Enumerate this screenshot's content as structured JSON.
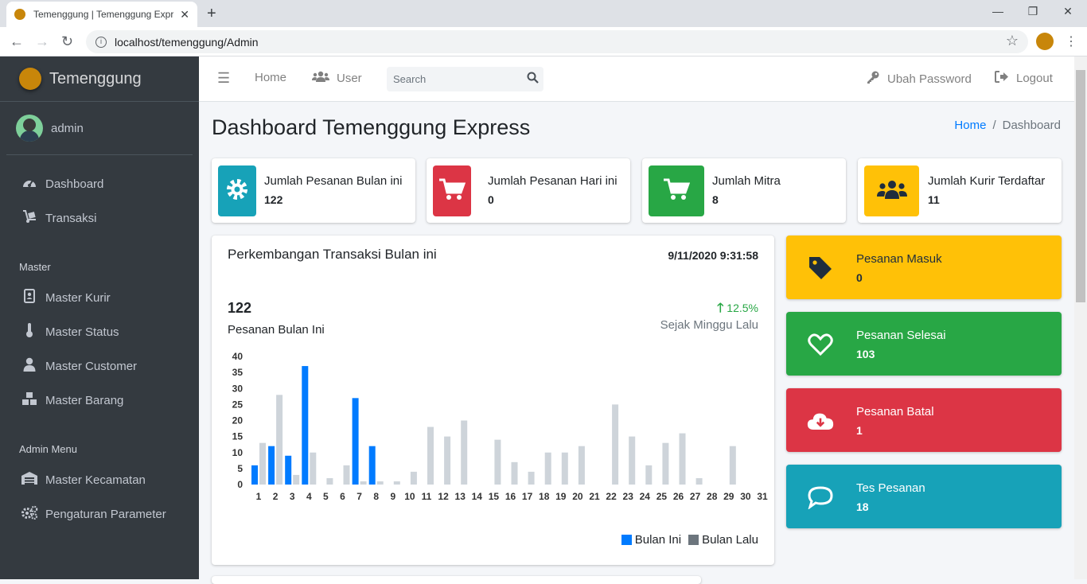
{
  "browser": {
    "tab_title": "Temenggung | Temenggung Express",
    "url": "localhost/temenggung/Admin"
  },
  "sidebar": {
    "brand": "Temenggung",
    "user": "admin",
    "items_main": [
      {
        "label": "Dashboard",
        "icon": "tachometer-icon"
      },
      {
        "label": "Transaksi",
        "icon": "dolly-icon"
      }
    ],
    "header_master": "Master",
    "items_master": [
      {
        "label": "Master Kurir",
        "icon": "address-book-icon"
      },
      {
        "label": "Master Status",
        "icon": "thermometer-icon"
      },
      {
        "label": "Master Customer",
        "icon": "user-icon"
      },
      {
        "label": "Master Barang",
        "icon": "boxes-icon"
      }
    ],
    "header_admin": "Admin Menu",
    "items_admin": [
      {
        "label": "Master Kecamatan",
        "icon": "warehouse-icon"
      },
      {
        "label": "Pengaturan Parameter",
        "icon": "cogs-icon"
      }
    ]
  },
  "topnav": {
    "home": "Home",
    "user": "User",
    "search_placeholder": "Search",
    "ubah_password": "Ubah Password",
    "logout": "Logout"
  },
  "page": {
    "title": "Dashboard Temenggung Express",
    "breadcrumb_home": "Home",
    "breadcrumb_current": "Dashboard"
  },
  "info_boxes": [
    {
      "label": "Jumlah Pesanan Bulan ini",
      "value": "122",
      "color": "#17a2b8",
      "icon": "cog-icon"
    },
    {
      "label": "Jumlah Pesanan Hari ini",
      "value": "0",
      "color": "#dc3545",
      "icon": "cart-icon"
    },
    {
      "label": "Jumlah Mitra",
      "value": "8",
      "color": "#28a745",
      "icon": "cart-icon"
    },
    {
      "label": "Jumlah Kurir Terdaftar",
      "value": "11",
      "color": "#ffc107",
      "icon": "users-icon"
    }
  ],
  "chart_card": {
    "title": "Perkembangan Transaksi Bulan ini",
    "datetime": "9/11/2020 9:31:58",
    "total": "122",
    "total_label": "Pesanan Bulan Ini",
    "change": "12.5%",
    "change_label": "Sejak Minggu Lalu"
  },
  "chart_data": {
    "type": "bar",
    "categories": [
      "1",
      "2",
      "3",
      "4",
      "5",
      "6",
      "7",
      "8",
      "9",
      "10",
      "11",
      "12",
      "13",
      "14",
      "15",
      "16",
      "17",
      "18",
      "19",
      "20",
      "21",
      "22",
      "23",
      "24",
      "25",
      "26",
      "27",
      "28",
      "29",
      "30",
      "31"
    ],
    "series": [
      {
        "name": "Bulan Ini",
        "color": "#007bff",
        "values": [
          6,
          12,
          9,
          37,
          0,
          0,
          27,
          12,
          0,
          0,
          0,
          0,
          0,
          0,
          0,
          0,
          0,
          0,
          0,
          0,
          0,
          0,
          0,
          0,
          0,
          0,
          0,
          0,
          0,
          0,
          0
        ]
      },
      {
        "name": "Bulan Lalu",
        "color": "#ced4da",
        "values": [
          13,
          28,
          3,
          10,
          2,
          6,
          1,
          1,
          1,
          4,
          18,
          15,
          20,
          0,
          14,
          7,
          4,
          10,
          10,
          12,
          0,
          25,
          15,
          6,
          13,
          16,
          2,
          0,
          12,
          0,
          0
        ]
      }
    ],
    "yticks": [
      0,
      5,
      10,
      15,
      20,
      25,
      30,
      35,
      40
    ],
    "ylim": [
      0,
      40
    ],
    "legend_position": "bottom-right",
    "legend_swatch_colors": [
      "#007bff",
      "#6c757d"
    ]
  },
  "small_boxes": [
    {
      "label": "Pesanan Masuk",
      "value": "0",
      "color": "#ffc107",
      "text_color": "#1f2d3d",
      "icon": "tag-icon"
    },
    {
      "label": "Pesanan Selesai",
      "value": "103",
      "color": "#28a745",
      "text_color": "#ffffff",
      "icon": "heart-icon"
    },
    {
      "label": "Pesanan Batal",
      "value": "1",
      "color": "#dc3545",
      "text_color": "#ffffff",
      "icon": "cloud-download-icon"
    },
    {
      "label": "Tes Pesanan",
      "value": "18",
      "color": "#17a2b8",
      "text_color": "#ffffff",
      "icon": "comment-icon"
    }
  ]
}
